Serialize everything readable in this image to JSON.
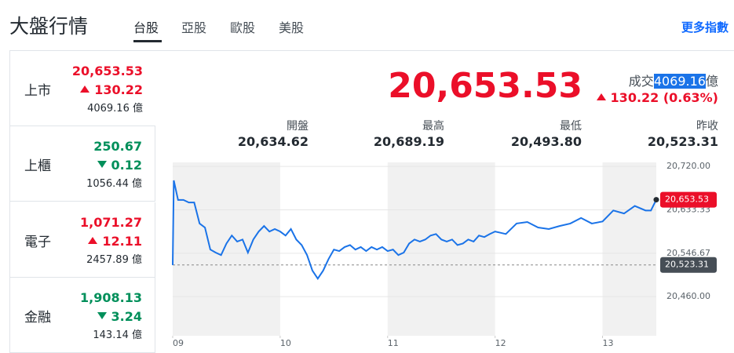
{
  "header": {
    "title": "大盤行情",
    "tabs": [
      "台股",
      "亞股",
      "歐股",
      "美股"
    ],
    "more_link": "更多指數"
  },
  "markets": [
    {
      "name": "上市",
      "price": "20,653.53",
      "change": "130.22",
      "direction": "up",
      "volume": "4069.16 億"
    },
    {
      "name": "上櫃",
      "price": "250.67",
      "change": "0.12",
      "direction": "down",
      "volume": "1056.44 億"
    },
    {
      "name": "電子",
      "price": "1,071.27",
      "change": "12.11",
      "direction": "up",
      "volume": "2457.89 億"
    },
    {
      "name": "金融",
      "price": "1,908.13",
      "change": "3.24",
      "direction": "down",
      "volume": "143.14 億"
    }
  ],
  "quote": {
    "price": "20,653.53",
    "volume_label": "成交",
    "volume": "4069.16",
    "volume_unit": "億",
    "change": "130.22 (0.63%)",
    "direction": "up"
  },
  "stats": [
    {
      "label": "開盤",
      "value": "20,634.62"
    },
    {
      "label": "最高",
      "value": "20,689.19"
    },
    {
      "label": "最低",
      "value": "20,493.80"
    },
    {
      "label": "昨收",
      "value": "20,523.31"
    }
  ],
  "chart": {
    "type": "line",
    "color": "#1a73e8",
    "x": [
      9.0,
      9.01,
      9.05,
      9.1,
      9.15,
      9.2,
      9.25,
      9.3,
      9.35,
      9.4,
      9.45,
      9.5,
      9.55,
      9.6,
      9.65,
      9.7,
      9.75,
      9.8,
      9.85,
      9.9,
      9.95,
      10.0,
      10.05,
      10.1,
      10.15,
      10.2,
      10.25,
      10.3,
      10.35,
      10.4,
      10.45,
      10.5,
      10.55,
      10.6,
      10.65,
      10.7,
      10.75,
      10.8,
      10.85,
      10.9,
      10.95,
      11.0,
      11.05,
      11.1,
      11.15,
      11.2,
      11.25,
      11.3,
      11.35,
      11.4,
      11.45,
      11.5,
      11.55,
      11.6,
      11.65,
      11.7,
      11.75,
      11.8,
      11.85,
      11.9,
      11.95,
      12.0,
      12.1,
      12.2,
      12.3,
      12.4,
      12.5,
      12.6,
      12.7,
      12.8,
      12.9,
      13.0,
      13.1,
      13.2,
      13.3,
      13.4,
      13.45,
      13.5
    ],
    "values": [
      20523,
      20692,
      20653,
      20653,
      20648,
      20648,
      20606,
      20598,
      20554,
      20548,
      20543,
      20566,
      20582,
      20570,
      20574,
      20548,
      20574,
      20590,
      20601,
      20590,
      20595,
      20590,
      20582,
      20595,
      20574,
      20563,
      20543,
      20512,
      20496,
      20512,
      20535,
      20554,
      20551,
      20559,
      20563,
      20554,
      20559,
      20551,
      20559,
      20554,
      20559,
      20551,
      20554,
      20543,
      20548,
      20566,
      20574,
      20570,
      20574,
      20582,
      20585,
      20574,
      20570,
      20574,
      20563,
      20566,
      20574,
      20570,
      20582,
      20579,
      20585,
      20590,
      20585,
      20606,
      20609,
      20598,
      20595,
      20601,
      20606,
      20617,
      20606,
      20610,
      20632,
      20626,
      20641,
      20632,
      20632,
      20653.53
    ],
    "xlim": [
      9,
      13.5
    ],
    "xticks": [
      {
        "value": 9,
        "label": "09"
      },
      10,
      11,
      12,
      13
    ],
    "ylim": [
      20382,
      20728
    ],
    "yticks": [
      {
        "value": 20720,
        "label": "20,720.00"
      },
      {
        "value": 20633.33,
        "label": "20,633.33"
      },
      {
        "value": 20546.67,
        "label": "20,546.67"
      },
      {
        "value": 20460,
        "label": "20,460.00"
      }
    ],
    "reference": {
      "value": 20523.31,
      "label": "20,523.31"
    },
    "last": {
      "value": 20653.53,
      "label": "20,653.53"
    }
  }
}
